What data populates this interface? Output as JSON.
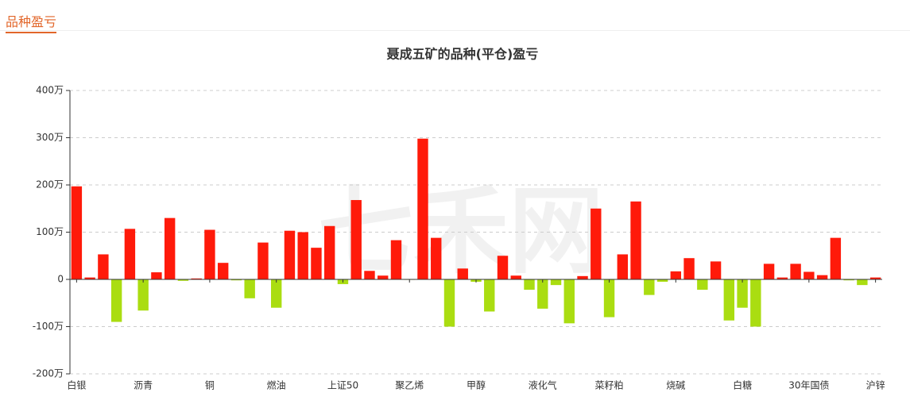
{
  "header": {
    "title": "品种盈亏"
  },
  "chart_data": {
    "type": "bar",
    "title": "聂成五矿的品种(平仓)盈亏",
    "watermark": "七禾网",
    "categories": [
      "白银",
      null,
      null,
      null,
      null,
      "沥青",
      null,
      null,
      null,
      null,
      "铜",
      null,
      null,
      null,
      null,
      "燃油",
      null,
      null,
      null,
      null,
      "上证50",
      null,
      null,
      null,
      null,
      "聚乙烯",
      null,
      null,
      null,
      null,
      "甲醇",
      null,
      null,
      null,
      null,
      "液化气",
      null,
      null,
      null,
      null,
      "菜籽粕",
      null,
      null,
      null,
      null,
      "烧碱",
      null,
      null,
      null,
      null,
      "白糖",
      null,
      null,
      null,
      null,
      "30年国债",
      null,
      null,
      null,
      null,
      "沪锌"
    ],
    "values": [
      197,
      4,
      53,
      -90,
      107,
      -66,
      15,
      130,
      -3,
      2,
      105,
      35,
      -2,
      -40,
      78,
      -60,
      103,
      100,
      67,
      113,
      -10,
      168,
      18,
      8,
      83,
      -1,
      298,
      88,
      -100,
      23,
      -5,
      -68,
      50,
      8,
      -22,
      -62,
      -12,
      -93,
      7,
      150,
      -80,
      53,
      165,
      -33,
      -5,
      17,
      45,
      -22,
      38,
      -87,
      -60,
      -100,
      33,
      4,
      33,
      16,
      9,
      88,
      -2,
      -12,
      4
    ],
    "positive_color": "#ff1a0a",
    "negative_color": "#aadd11",
    "ylim": [
      -200,
      400
    ],
    "yticks": [
      {
        "value": -200,
        "label": "-200万"
      },
      {
        "value": -100,
        "label": "-100万"
      },
      {
        "value": 0,
        "label": "0"
      },
      {
        "value": 100,
        "label": "100万"
      },
      {
        "value": 200,
        "label": "200万"
      },
      {
        "value": 300,
        "label": "300万"
      },
      {
        "value": 400,
        "label": "400万"
      }
    ],
    "grid": true
  }
}
